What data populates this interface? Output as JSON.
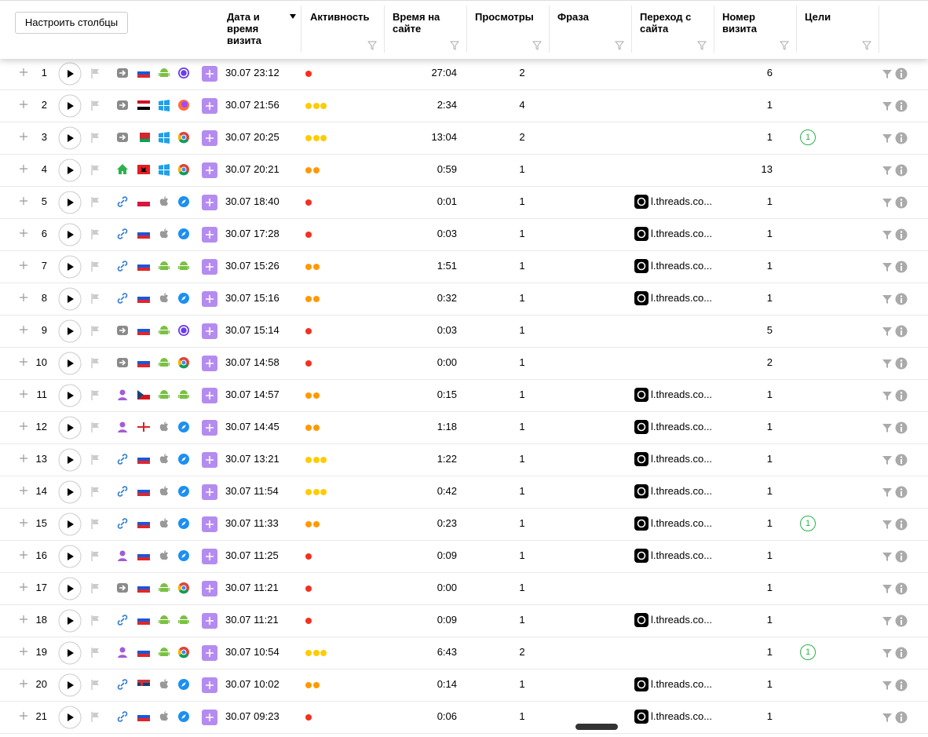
{
  "button": "Настроить столбцы",
  "columns": [
    "Дата и время визита",
    "Активность",
    "Время на сайте",
    "Просмотры",
    "Фраза",
    "Переход с сайта",
    "Номер визита",
    "Цели"
  ],
  "activity_colors": [
    "#f5301f",
    "#ff9900",
    "#ffcc00"
  ],
  "rows": [
    {
      "n": 1,
      "datetime": "30.07 23:12",
      "activity": 1,
      "time": "27:04",
      "views": 2,
      "visit": 6
    },
    {
      "n": 2,
      "datetime": "30.07 21:56",
      "activity": 3,
      "time": "2:34",
      "views": 4,
      "visit": 1
    },
    {
      "n": 3,
      "datetime": "30.07 20:25",
      "activity": 3,
      "time": "13:04",
      "views": 2,
      "visit": 1,
      "goals": 1
    },
    {
      "n": 4,
      "datetime": "30.07 20:21",
      "activity": 2,
      "time": "0:59",
      "views": 1,
      "visit": 13
    },
    {
      "n": 5,
      "datetime": "30.07 18:40",
      "activity": 1,
      "time": "0:01",
      "views": 1,
      "referrer": "l.threads.co...",
      "visit": 1
    },
    {
      "n": 6,
      "datetime": "30.07 17:28",
      "activity": 1,
      "time": "0:03",
      "views": 1,
      "referrer": "l.threads.co...",
      "visit": 1
    },
    {
      "n": 7,
      "datetime": "30.07 15:26",
      "activity": 2,
      "time": "1:51",
      "views": 1,
      "referrer": "l.threads.co...",
      "visit": 1
    },
    {
      "n": 8,
      "datetime": "30.07 15:16",
      "activity": 2,
      "time": "0:32",
      "views": 1,
      "referrer": "l.threads.co...",
      "visit": 1
    },
    {
      "n": 9,
      "datetime": "30.07 15:14",
      "activity": 1,
      "time": "0:03",
      "views": 1,
      "visit": 5
    },
    {
      "n": 10,
      "datetime": "30.07 14:58",
      "activity": 1,
      "time": "0:00",
      "views": 1,
      "visit": 2
    },
    {
      "n": 11,
      "datetime": "30.07 14:57",
      "activity": 2,
      "time": "0:15",
      "views": 1,
      "referrer": "l.threads.co...",
      "visit": 1
    },
    {
      "n": 12,
      "datetime": "30.07 14:45",
      "activity": 2,
      "time": "1:18",
      "views": 1,
      "referrer": "l.threads.co...",
      "visit": 1
    },
    {
      "n": 13,
      "datetime": "30.07 13:21",
      "activity": 3,
      "time": "1:22",
      "views": 1,
      "referrer": "l.threads.co...",
      "visit": 1
    },
    {
      "n": 14,
      "datetime": "30.07 11:54",
      "activity": 3,
      "time": "0:42",
      "views": 1,
      "referrer": "l.threads.co...",
      "visit": 1
    },
    {
      "n": 15,
      "datetime": "30.07 11:33",
      "activity": 2,
      "time": "0:23",
      "views": 1,
      "referrer": "l.threads.co...",
      "visit": 1,
      "goals": 1
    },
    {
      "n": 16,
      "datetime": "30.07 11:25",
      "activity": 1,
      "time": "0:09",
      "views": 1,
      "referrer": "l.threads.co...",
      "visit": 1
    },
    {
      "n": 17,
      "datetime": "30.07 11:21",
      "activity": 1,
      "time": "0:00",
      "views": 1,
      "visit": 1
    },
    {
      "n": 18,
      "datetime": "30.07 11:21",
      "activity": 1,
      "time": "0:09",
      "views": 1,
      "referrer": "l.threads.co...",
      "visit": 1
    },
    {
      "n": 19,
      "datetime": "30.07 10:54",
      "activity": 3,
      "time": "6:43",
      "views": 2,
      "visit": 1,
      "goals": 1
    },
    {
      "n": 20,
      "datetime": "30.07 10:02",
      "activity": 2,
      "time": "0:14",
      "views": 1,
      "referrer": "l.threads.co...",
      "visit": 1
    },
    {
      "n": 21,
      "datetime": "30.07 09:23",
      "activity": 1,
      "time": "0:06",
      "views": 1,
      "referrer": "l.threads.co...",
      "visit": 1
    }
  ]
}
